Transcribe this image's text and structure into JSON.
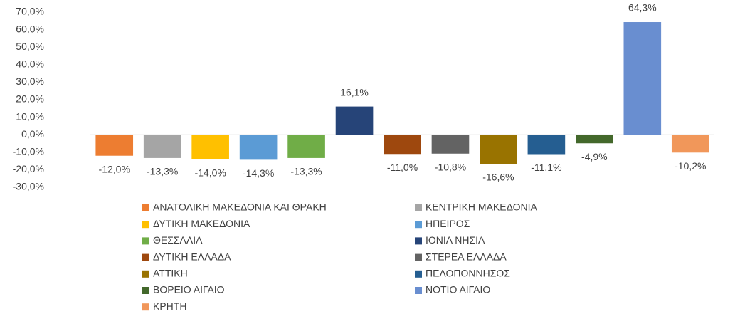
{
  "chart_data": {
    "type": "bar",
    "series": [
      {
        "name": "ΑΝΑΤΟΛΙΚΗ ΜΑΚΕΔΟΝΙΑ ΚΑΙ ΘΡΑΚΗ",
        "color": "#ed7d31",
        "values": [
          -12.0
        ],
        "value_labels": [
          "-12,0%"
        ]
      },
      {
        "name": "ΚΕΝΤΡΙΚΗ ΜΑΚΕΔΟΝΙΑ",
        "color": "#a5a5a5",
        "values": [
          -13.3
        ],
        "value_labels": [
          "-13,3%"
        ]
      },
      {
        "name": "ΔΥΤΙΚΗ ΜΑΚΕΔΟΝΙΑ",
        "color": "#ffc000",
        "values": [
          -14.0
        ],
        "value_labels": [
          "-14,0%"
        ]
      },
      {
        "name": "ΗΠΕΙΡΟΣ",
        "color": "#5b9bd5",
        "values": [
          -14.3
        ],
        "value_labels": [
          "-14,3%"
        ]
      },
      {
        "name": "ΘΕΣΣΑΛΙΑ",
        "color": "#70ad47",
        "values": [
          -13.3
        ],
        "value_labels": [
          "-13,3%"
        ]
      },
      {
        "name": "ΙΟΝΙΑ ΝΗΣΙΑ",
        "color": "#264478",
        "values": [
          16.1
        ],
        "value_labels": [
          "16,1%"
        ]
      },
      {
        "name": "ΔΥΤΙΚΗ ΕΛΛΑΔΑ",
        "color": "#9e480e",
        "values": [
          -11.0
        ],
        "value_labels": [
          "-11,0%"
        ]
      },
      {
        "name": "ΣΤΕΡΕΑ ΕΛΛΑΔΑ",
        "color": "#636363",
        "values": [
          -10.8
        ],
        "value_labels": [
          "-10,8%"
        ]
      },
      {
        "name": "ΑΤΤΙΚΗ",
        "color": "#997300",
        "values": [
          -16.6
        ],
        "value_labels": [
          "-16,6%"
        ]
      },
      {
        "name": "ΠΕΛΟΠΟΝΝΗΣΟΣ",
        "color": "#255e91",
        "values": [
          -11.1
        ],
        "value_labels": [
          "-11,1%"
        ]
      },
      {
        "name": "ΒΟΡΕΙΟ ΑΙΓΑΙΟ",
        "color": "#43682b",
        "values": [
          -4.9
        ],
        "value_labels": [
          "-4,9%"
        ]
      },
      {
        "name": "ΝΟΤΙΟ ΑΙΓΑΙΟ",
        "color": "#698ed0",
        "values": [
          64.3
        ],
        "value_labels": [
          "64,3%"
        ]
      },
      {
        "name": "ΚΡΗΤΗ",
        "color": "#f1975a",
        "values": [
          -10.2
        ],
        "value_labels": [
          "-10,2%"
        ]
      }
    ],
    "ylim": [
      -30,
      70
    ],
    "yticks": [
      {
        "value": -30,
        "label": "-30,0%"
      },
      {
        "value": -20,
        "label": "-20,0%"
      },
      {
        "value": -10,
        "label": "-10,0%"
      },
      {
        "value": 0,
        "label": "0,0%"
      },
      {
        "value": 10,
        "label": "10,0%"
      },
      {
        "value": 20,
        "label": "20,0%"
      },
      {
        "value": 30,
        "label": "30,0%"
      },
      {
        "value": 40,
        "label": "40,0%"
      },
      {
        "value": 50,
        "label": "50,0%"
      },
      {
        "value": 60,
        "label": "60,0%"
      },
      {
        "value": 70,
        "label": "70,0%"
      }
    ],
    "grid": false
  }
}
